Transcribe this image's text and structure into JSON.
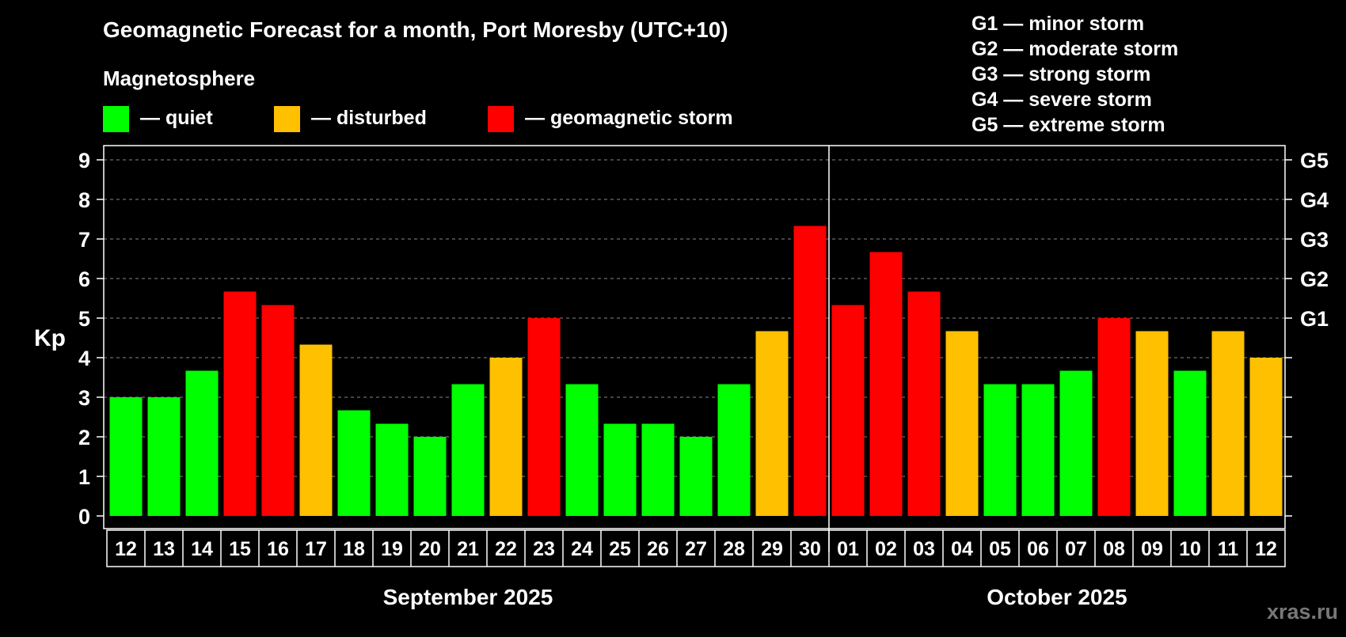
{
  "title": "Geomagnetic Forecast for a month, Port Moresby (UTC+10)",
  "legend": {
    "heading": "Magnetosphere",
    "items": [
      {
        "label": "— quiet",
        "color": "#00ff00"
      },
      {
        "label": "— disturbed",
        "color": "#ffc000"
      },
      {
        "label": "— geomagnetic storm",
        "color": "#ff0000"
      }
    ]
  },
  "storm_scale": [
    "G1 — minor storm",
    "G2 — moderate storm",
    "G3 — strong storm",
    "G4 — severe storm",
    "G5 — extreme storm"
  ],
  "watermark": "xras.ru",
  "chart_data": {
    "type": "bar",
    "ylabel": "Kp",
    "ylim": [
      0,
      9
    ],
    "yticks": [
      "0",
      "1",
      "2",
      "3",
      "4",
      "5",
      "6",
      "7",
      "8",
      "9"
    ],
    "right_axis_labels": [
      {
        "kp": 5,
        "label": "G1"
      },
      {
        "kp": 6,
        "label": "G2"
      },
      {
        "kp": 7,
        "label": "G3"
      },
      {
        "kp": 8,
        "label": "G4"
      },
      {
        "kp": 9,
        "label": "G5"
      }
    ],
    "grid": true,
    "months": [
      {
        "label": "September 2025",
        "start": 0,
        "end": 18
      },
      {
        "label": "October 2025",
        "start": 19,
        "end": 30
      }
    ],
    "categories": [
      "12",
      "13",
      "14",
      "15",
      "16",
      "17",
      "18",
      "19",
      "20",
      "21",
      "22",
      "23",
      "24",
      "25",
      "26",
      "27",
      "28",
      "29",
      "30",
      "01",
      "02",
      "03",
      "04",
      "05",
      "06",
      "07",
      "08",
      "09",
      "10",
      "11",
      "12"
    ],
    "values": [
      3.0,
      3.0,
      3.67,
      5.67,
      5.33,
      4.33,
      2.67,
      2.33,
      2.0,
      3.33,
      4.0,
      5.0,
      3.33,
      2.33,
      2.33,
      2.0,
      3.33,
      4.67,
      7.33,
      5.33,
      6.67,
      5.67,
      4.67,
      3.33,
      3.33,
      3.67,
      5.0,
      4.67,
      3.67,
      4.67,
      4.0
    ],
    "levels": [
      "quiet",
      "quiet",
      "quiet",
      "storm",
      "storm",
      "disturbed",
      "quiet",
      "quiet",
      "quiet",
      "quiet",
      "disturbed",
      "storm",
      "quiet",
      "quiet",
      "quiet",
      "quiet",
      "quiet",
      "disturbed",
      "storm",
      "storm",
      "storm",
      "storm",
      "disturbed",
      "quiet",
      "quiet",
      "quiet",
      "storm",
      "disturbed",
      "quiet",
      "disturbed",
      "disturbed"
    ],
    "level_colors": {
      "quiet": "#00ff00",
      "disturbed": "#ffc000",
      "storm": "#ff0000"
    }
  }
}
